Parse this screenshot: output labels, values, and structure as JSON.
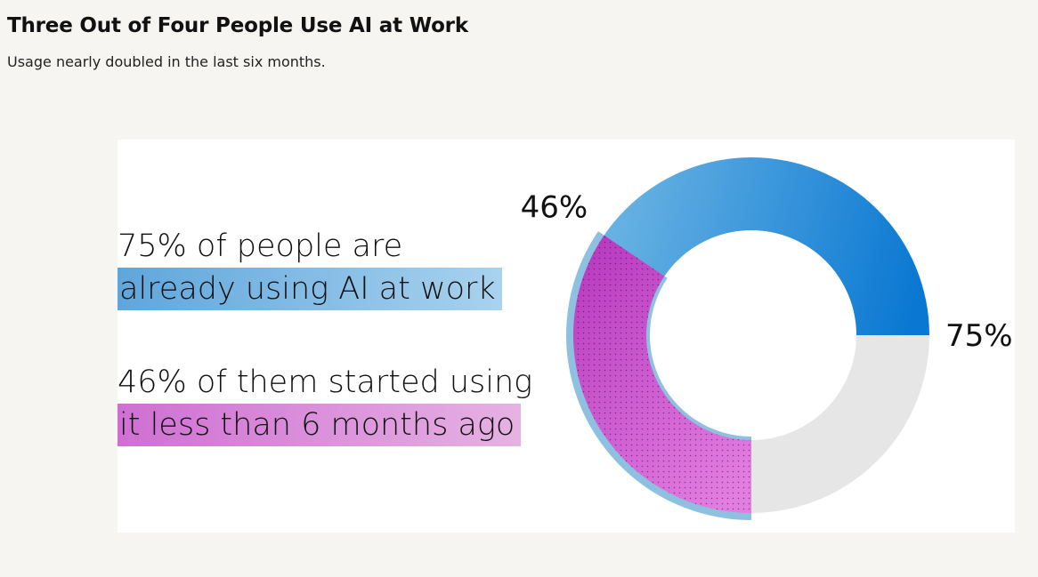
{
  "header": {
    "title": "Three Out of Four People Use AI at Work",
    "subtitle": "Usage nearly doubled in the last six months."
  },
  "statements": {
    "first_line1": "75% of people are",
    "first_line2": "already using AI at work",
    "second_line1": "46% of them started using",
    "second_line2": "it less than 6 months ago"
  },
  "colors": {
    "background": "#f6f5f2",
    "card": "#ffffff",
    "using_ai_start": "#78bce6",
    "using_ai_end": "#0a78d2",
    "not_using": "#e6e6e6",
    "recent_start": "#b93cc0",
    "recent_end": "#e27ee0",
    "recent_border": "#8ec0e0"
  },
  "chart_data": {
    "type": "pie",
    "title": "",
    "series": [
      {
        "values": [
          75,
          25
        ]
      }
    ],
    "subset": {
      "value": 46,
      "of": "using AI at work"
    },
    "labels": [
      "75%",
      "46%"
    ],
    "legend": "none"
  }
}
